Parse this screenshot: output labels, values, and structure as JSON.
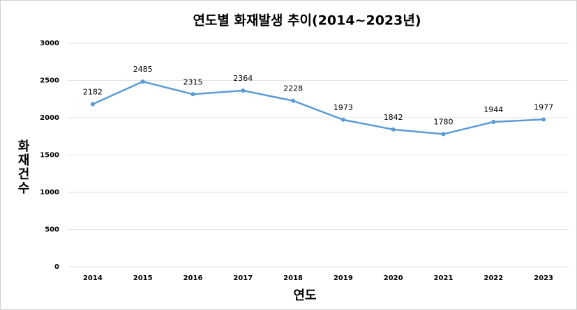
{
  "chart_data": {
    "type": "line",
    "title": "연도별 화재발생 추이(2014~2023년)",
    "x_label": "연도",
    "y_label": "화재건수",
    "categories": [
      "2014",
      "2015",
      "2016",
      "2017",
      "2018",
      "2019",
      "2020",
      "2021",
      "2022",
      "2023"
    ],
    "series": [
      {
        "name": "화재건수",
        "color": "#5b9bd5",
        "values": [
          2182,
          2485,
          2315,
          2364,
          2228,
          1973,
          1842,
          1780,
          1944,
          1977
        ]
      }
    ],
    "ylim": [
      0,
      3000
    ],
    "yticks": [
      0,
      500,
      1000,
      1500,
      2000,
      2500,
      3000
    ],
    "grid": true
  }
}
